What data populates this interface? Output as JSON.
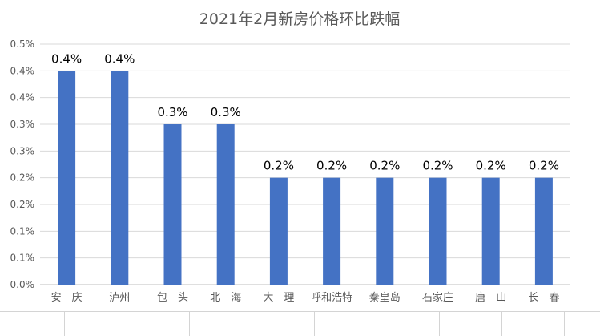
{
  "chart_data": {
    "type": "bar",
    "title": "2021年2月新房价格环比跌幅",
    "categories": [
      "安　庆",
      "泸州",
      "包　头",
      "北　海",
      "大　理",
      "呼和浩特",
      "秦皇岛",
      "石家庄",
      "唐　山",
      "长　春"
    ],
    "values": [
      0.004,
      0.004,
      0.003,
      0.003,
      0.002,
      0.002,
      0.002,
      0.002,
      0.002,
      0.002
    ],
    "data_labels": [
      "0.4%",
      "0.4%",
      "0.3%",
      "0.3%",
      "0.2%",
      "0.2%",
      "0.2%",
      "0.2%",
      "0.2%",
      "0.2%"
    ],
    "ylim": [
      0,
      0.0045
    ],
    "y_ticks": [
      0,
      0.0005,
      0.001,
      0.0015,
      0.002,
      0.0025,
      0.003,
      0.0035,
      0.004,
      0.0045
    ],
    "y_tick_labels": [
      "0.0%",
      "0.1%",
      "0.1%",
      "0.2%",
      "0.2%",
      "0.3%",
      "0.3%",
      "0.4%",
      "0.4%",
      "0.5%"
    ],
    "grid": true,
    "bar_color": "#4472c4",
    "xlabel": "",
    "ylabel": ""
  }
}
